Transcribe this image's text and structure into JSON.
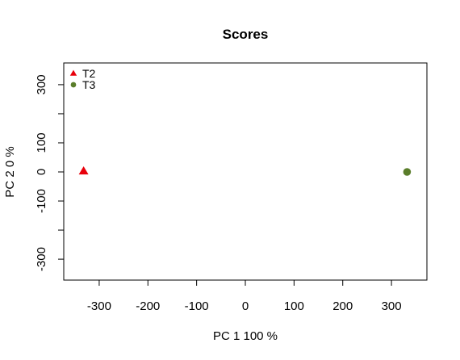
{
  "chart_data": {
    "type": "scatter",
    "title": "Scores",
    "xlabel": "PC 1 100 %",
    "ylabel": "PC 2 0 %",
    "xlim": [
      -370,
      370
    ],
    "ylim": [
      -370,
      370
    ],
    "x_ticks": [
      -300,
      -200,
      -100,
      0,
      100,
      200,
      300
    ],
    "y_ticks": [
      -300,
      -200,
      -100,
      0,
      100,
      200,
      300
    ],
    "y_tick_labels": [
      "-300",
      "",
      "-100",
      "0",
      "100",
      "",
      "300"
    ],
    "legend_position": "top-left",
    "series": [
      {
        "name": "T2",
        "marker": "triangle",
        "color": "#e8000b",
        "points": [
          {
            "x": -332,
            "y": 2
          }
        ]
      },
      {
        "name": "T3",
        "marker": "circle",
        "color": "#5a7d2a",
        "points": [
          {
            "x": 332,
            "y": 0
          }
        ]
      }
    ]
  }
}
